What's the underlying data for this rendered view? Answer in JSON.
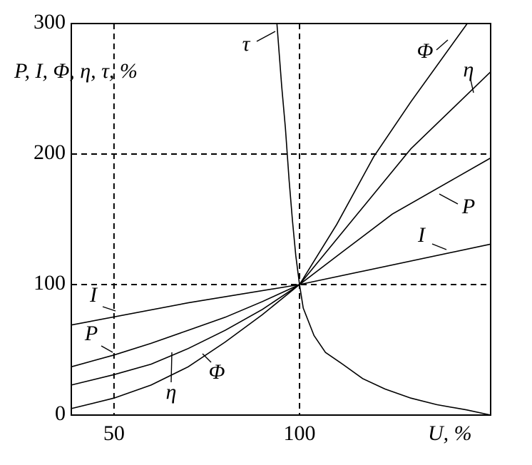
{
  "chart_data": {
    "type": "line",
    "y_label": "P, I, Φ, η, τ,  %",
    "x_label": "U,  %",
    "xlim": [
      38.5,
      151.5
    ],
    "xticks": [
      50,
      100
    ],
    "ylim": [
      0,
      300
    ],
    "yticks": [
      0,
      100,
      200,
      300
    ],
    "grid": true,
    "color": "#000000",
    "series": [
      {
        "name": "τ",
        "color": "#000000",
        "x": [
          93.9,
          95.2,
          96.2,
          97.2,
          98.1,
          99.0,
          100,
          101,
          103.9,
          107,
          111.6,
          117,
          123,
          130,
          137,
          145,
          151.5
        ],
        "values": [
          300,
          252,
          220,
          180,
          149,
          122,
          100,
          82,
          61,
          48,
          39,
          28,
          20,
          13,
          8,
          4,
          0
        ]
      },
      {
        "name": "Φ",
        "color": "#000000",
        "x": [
          38.5,
          50,
          60,
          70,
          80,
          90,
          100,
          110,
          120,
          130,
          145.2
        ],
        "values": [
          5,
          13,
          23,
          37,
          56,
          77,
          100,
          146,
          198,
          240,
          300
        ]
      },
      {
        "name": "η",
        "color": "#000000",
        "x": [
          38.5,
          50,
          60,
          70,
          80,
          90,
          100,
          115,
          130,
          151.5
        ],
        "values": [
          23,
          31,
          39,
          51,
          65,
          81,
          100,
          152,
          204,
          263
        ]
      },
      {
        "name": "P",
        "color": "#000000",
        "x": [
          38.5,
          50,
          60,
          70,
          80,
          90,
          100,
          112,
          125,
          151.5
        ],
        "values": [
          37,
          46,
          55,
          65,
          75,
          87,
          100,
          126,
          154,
          197
        ]
      },
      {
        "name": "I",
        "color": "#000000",
        "x": [
          38.5,
          70,
          100,
          151.5
        ],
        "values": [
          69,
          86,
          100,
          131
        ]
      }
    ]
  }
}
